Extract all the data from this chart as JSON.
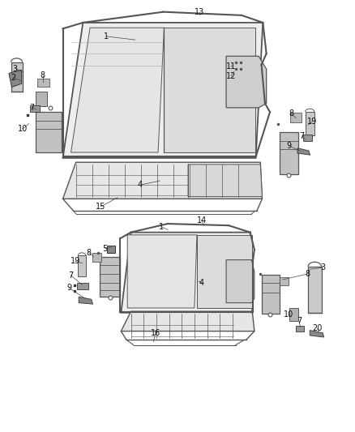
{
  "bg_color": "#ffffff",
  "line_color": "#555555",
  "light_gray": "#aaaaaa",
  "dark_gray": "#333333",
  "figsize": [
    4.38,
    5.33
  ],
  "dpi": 100
}
